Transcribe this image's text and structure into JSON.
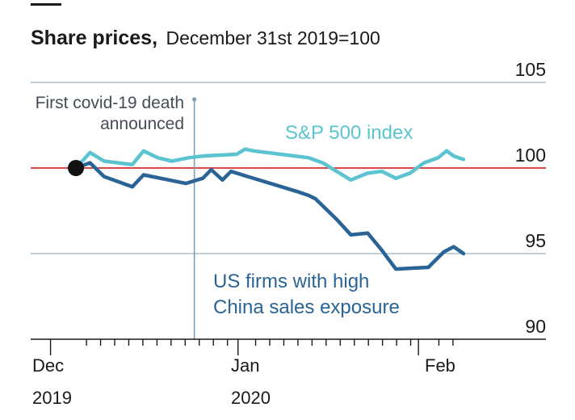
{
  "chart_data": {
    "type": "line",
    "title": "Share prices,",
    "subtitle": "December 31st 2019=100",
    "y_ticks": [
      "105",
      "100",
      "95",
      "90"
    ],
    "ylim": [
      90,
      105
    ],
    "x_tick_labels": [
      {
        "label": "Dec",
        "year": "2019"
      },
      {
        "label": "Jan",
        "year": "2020"
      },
      {
        "label": "Feb",
        "year": ""
      }
    ],
    "baseline": 100,
    "annotation": {
      "lines": [
        "First covid-19 death",
        "announced"
      ],
      "x": 8.4
    },
    "colors": {
      "sp500": "#5bc4d0",
      "china": "#2a6496",
      "baseline": "#d6302c",
      "grid": "#a9bfcc",
      "annotation": "#7f9db1",
      "axis": "#1a1a1a"
    },
    "series": [
      {
        "name": "S&P 500 index",
        "values": [
          [
            0,
            100.0
          ],
          [
            1,
            100.9
          ],
          [
            2,
            100.4
          ],
          [
            4,
            100.2
          ],
          [
            4.8,
            101.0
          ],
          [
            5.8,
            100.6
          ],
          [
            6.8,
            100.4
          ],
          [
            8,
            100.6
          ],
          [
            9,
            100.7
          ],
          [
            11.4,
            100.8
          ],
          [
            12,
            101.1
          ],
          [
            12.6,
            101.0
          ],
          [
            16.5,
            100.6
          ],
          [
            17.5,
            100.3
          ],
          [
            18.5,
            99.8
          ],
          [
            19.5,
            99.3
          ],
          [
            20.7,
            99.7
          ],
          [
            21.7,
            99.8
          ],
          [
            22.7,
            99.4
          ],
          [
            23.7,
            99.7
          ],
          [
            24.7,
            100.3
          ],
          [
            25.7,
            100.6
          ],
          [
            26.3,
            101.0
          ],
          [
            26.8,
            100.7
          ],
          [
            27.5,
            100.5
          ]
        ]
      },
      {
        "name": "US firms with high China sales exposure",
        "label_lines": [
          "US firms with high",
          "China sales exposure"
        ],
        "values": [
          [
            0,
            100.0
          ],
          [
            1,
            100.3
          ],
          [
            2,
            99.5
          ],
          [
            4,
            98.9
          ],
          [
            4.8,
            99.6
          ],
          [
            7.8,
            99.1
          ],
          [
            9,
            99.4
          ],
          [
            9.6,
            99.9
          ],
          [
            10.4,
            99.3
          ],
          [
            11,
            99.8
          ],
          [
            12.2,
            99.5
          ],
          [
            15.8,
            98.6
          ],
          [
            16.5,
            98.4
          ],
          [
            17,
            98.2
          ],
          [
            18.5,
            97.0
          ],
          [
            19.5,
            96.1
          ],
          [
            20.7,
            96.2
          ],
          [
            21.7,
            95.2
          ],
          [
            22.7,
            94.1
          ],
          [
            25,
            94.2
          ],
          [
            26.1,
            95.1
          ],
          [
            26.8,
            95.4
          ],
          [
            27.5,
            95.0
          ]
        ]
      }
    ],
    "x_extent": [
      -2.6,
      28.3
    ]
  }
}
